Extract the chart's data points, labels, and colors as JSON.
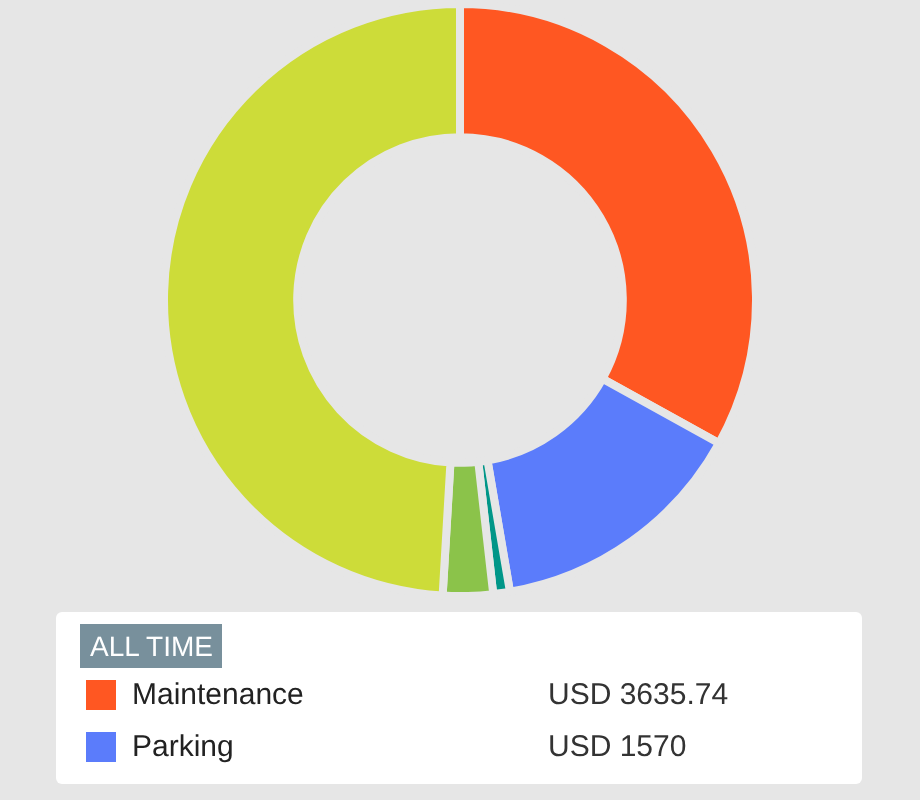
{
  "chart_data": {
    "type": "donut",
    "legend_title": "ALL TIME",
    "legend": "bottom",
    "categories": [
      "Maintenance",
      "Parking",
      null,
      null,
      null
    ],
    "values": [
      3635.74,
      1570,
      100,
      300,
      5400
    ],
    "value_labels": [
      "USD 3635.74",
      "USD 1570",
      null,
      null,
      null
    ],
    "colors": [
      "#ff5722",
      "#5b7cfb",
      "#009688",
      "#8bc34a",
      "#cddc39"
    ]
  }
}
